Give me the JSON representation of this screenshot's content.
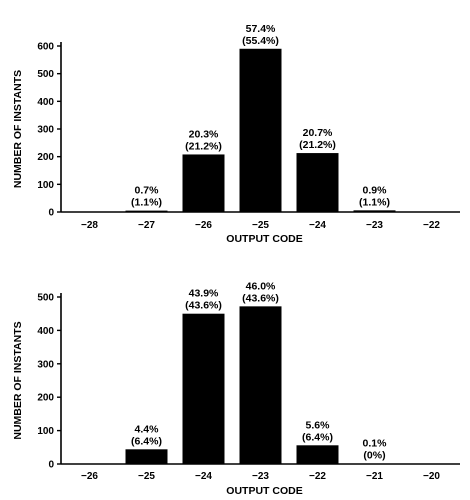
{
  "chart_data": [
    {
      "type": "bar",
      "xlabel": "OUTPUT CODE",
      "ylabel": "NUMBER OF INSTANTS",
      "x": [
        -28,
        -27,
        -26,
        -25,
        -24,
        -23,
        -22
      ],
      "categories": [
        "-28",
        "-27",
        "-26",
        "-25",
        "-24",
        "-23",
        "-22"
      ],
      "values": [
        0,
        5,
        208,
        590,
        213,
        6,
        0
      ],
      "labels": [
        null,
        [
          "0.7%",
          "(1.1%)"
        ],
        [
          "20.3%",
          "(21.2%)"
        ],
        [
          "57.4%",
          "(55.4%)"
        ],
        [
          "20.7%",
          "(21.2%)"
        ],
        [
          "0.9%",
          "(1.1%)"
        ],
        null
      ],
      "yticks": [
        0,
        100,
        200,
        300,
        400,
        500,
        600
      ],
      "ylim": [
        0,
        600
      ],
      "grid": false
    },
    {
      "type": "bar",
      "xlabel": "OUTPUT CODE",
      "ylabel": "NUMBER OF INSTANTS",
      "x": [
        -26,
        -25,
        -24,
        -23,
        -22,
        -21,
        -20
      ],
      "categories": [
        "-26",
        "-25",
        "-24",
        "-23",
        "-22",
        "-21",
        "-20"
      ],
      "values": [
        0,
        44,
        450,
        472,
        56,
        1,
        0
      ],
      "labels": [
        null,
        [
          "4.4%",
          "(6.4%)"
        ],
        [
          "43.9%",
          "(43.6%)"
        ],
        [
          "46.0%",
          "(43.6%)"
        ],
        [
          "5.6%",
          "(6.4%)"
        ],
        [
          "0.1%",
          "(0%)"
        ],
        null
      ],
      "yticks": [
        0,
        100,
        200,
        300,
        400,
        500
      ],
      "ylim": [
        0,
        500
      ],
      "grid": false
    }
  ]
}
